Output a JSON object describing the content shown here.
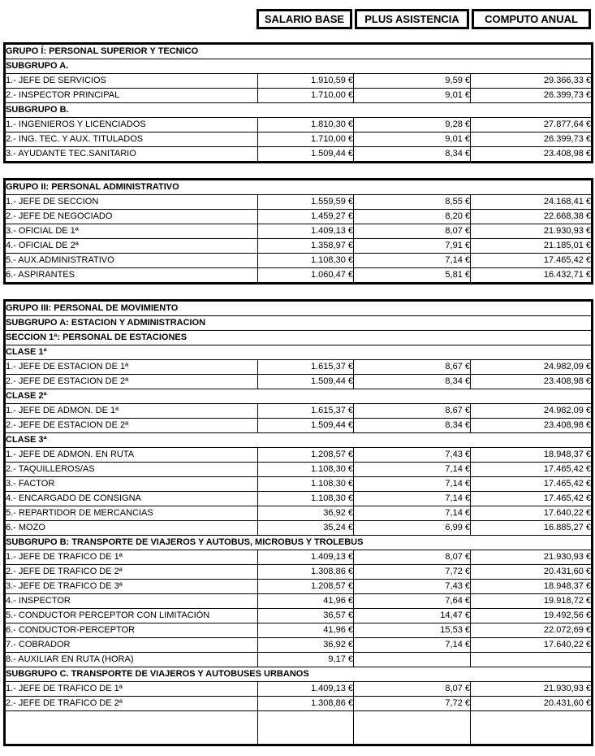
{
  "header_band": {
    "columns": [
      "SALARIO BASE",
      "PLUS ASISTENCIA",
      "COMPUTO ANUAL"
    ]
  },
  "colors": {
    "background": "#ffffff",
    "border": "#000000",
    "text": "#000000"
  },
  "tables": [
    {
      "name": "grupo-i",
      "rows": [
        {
          "type": "section",
          "label": "GRUPO Í: PERSONAL SUPERIOR Y TECNICO"
        },
        {
          "type": "section",
          "label": "SUBGRUPO A."
        },
        {
          "type": "data",
          "label": "1.- JEFE DE SERVICIOS",
          "values": [
            "1.910,59 €",
            "9,59 €",
            "29.366,33 €"
          ]
        },
        {
          "type": "data",
          "label": "2.- INSPECTOR PRINCIPAL",
          "values": [
            "1.710,00 €",
            "9,01 €",
            "26.399,73 €"
          ]
        },
        {
          "type": "section",
          "label": "SUBGRUPO B."
        },
        {
          "type": "data",
          "label": "1.- INGENIEROS Y LICENCIADOS",
          "values": [
            "1.810,30 €",
            "9,28 €",
            "27.877,64 €"
          ]
        },
        {
          "type": "data",
          "label": "2.- ING. TEC. Y AUX. TITULADOS",
          "values": [
            "1.710,00 €",
            "9,01 €",
            "26.399,73 €"
          ]
        },
        {
          "type": "data",
          "label": "3.- AYUDANTE TEC.SANITARIO",
          "values": [
            "1.509,44 €",
            "8,34 €",
            "23.408,98 €"
          ]
        }
      ]
    },
    {
      "name": "grupo-ii",
      "rows": [
        {
          "type": "section",
          "label": "GRUPO II: PERSONAL ADMINISTRATIVO"
        },
        {
          "type": "data",
          "label": "1.- JEFE DE SECCION",
          "values": [
            "1.559,59 €",
            "8,55 €",
            "24.168,41 €"
          ]
        },
        {
          "type": "data",
          "label": "2.- JEFE DE NEGOCIADO",
          "values": [
            "1.459,27 €",
            "8,20 €",
            "22.668,38 €"
          ]
        },
        {
          "type": "data",
          "label": "3.- OFICIAL DE 1ª",
          "values": [
            "1.409,13 €",
            "8,07 €",
            "21.930,93 €"
          ]
        },
        {
          "type": "data",
          "label": "4.- OFICIAL DE 2ª",
          "values": [
            "1.358,97 €",
            "7,91 €",
            "21.185,01 €"
          ]
        },
        {
          "type": "data",
          "label": "5.- AUX.ADMINISTRATIVO",
          "values": [
            "1.108,30 €",
            "7,14 €",
            "17.465,42 €"
          ]
        },
        {
          "type": "data",
          "label": "6.- ASPIRANTES",
          "values": [
            "1.060,47 €",
            "5,81 €",
            "16.432,71 €"
          ]
        }
      ]
    },
    {
      "name": "grupo-iii",
      "rows": [
        {
          "type": "section",
          "label": "GRUPO III: PERSONAL DE MOVIMIENTO"
        },
        {
          "type": "section",
          "label": "SUBGRUPO A: ESTACION Y ADMINISTRACION"
        },
        {
          "type": "section",
          "label": "SECCION 1ª: PERSONAL DE ESTACIONES"
        },
        {
          "type": "section",
          "label": "CLASE 1ª"
        },
        {
          "type": "data",
          "label": "1.- JEFE DE ESTACION DE 1ª",
          "values": [
            "1.615,37 €",
            "8,67 €",
            "24.982,09 €"
          ]
        },
        {
          "type": "data",
          "label": "2.- JEFE DE ESTACION DE 2ª",
          "values": [
            "1.509,44 €",
            "8,34 €",
            "23.408,98 €"
          ]
        },
        {
          "type": "section",
          "label": "CLASE 2ª"
        },
        {
          "type": "data",
          "label": "1.- JEFE DE ADMON. DE 1ª",
          "values": [
            "1.615,37 €",
            "8,67 €",
            "24.982,09 €"
          ]
        },
        {
          "type": "data",
          "label": "2.- JEFE DE ESTACION DE 2ª",
          "values": [
            "1.509,44 €",
            "8,34 €",
            "23.408,98 €"
          ]
        },
        {
          "type": "section",
          "label": "CLASE 3ª"
        },
        {
          "type": "data",
          "label": "1.- JEFE DE ADMON. EN RUTA",
          "values": [
            "1.208,57 €",
            "7,43 €",
            "18.948,37 €"
          ]
        },
        {
          "type": "data",
          "label": "2.- TAQUILLEROS/AS",
          "values": [
            "1.108,30 €",
            "7,14 €",
            "17.465,42 €"
          ]
        },
        {
          "type": "data",
          "label": "3.- FACTOR",
          "values": [
            "1.108,30 €",
            "7,14 €",
            "17.465,42 €"
          ]
        },
        {
          "type": "data",
          "label": "4.- ENCARGADO DE CONSIGNA",
          "values": [
            "1.108,30 €",
            "7,14 €",
            "17.465,42 €"
          ]
        },
        {
          "type": "data",
          "label": "5.- REPARTIDOR DE MERCANCIAS",
          "values": [
            "36,92 €",
            "7,14 €",
            "17.640,22 €"
          ]
        },
        {
          "type": "data",
          "label": "6.- MOZO",
          "values": [
            "35,24 €",
            "6,99 €",
            "16.885,27 €"
          ]
        },
        {
          "type": "section",
          "label": "SUBGRUPO B: TRANSPORTE DE VIAJEROS Y AUTOBUS, MICROBUS Y TROLEBUS"
        },
        {
          "type": "data",
          "label": "1.- JEFE DE TRAFICO DE 1ª",
          "values": [
            "1.409,13 €",
            "8,07 €",
            "21.930,93 €"
          ]
        },
        {
          "type": "data",
          "label": "2.- JEFE DE TRAFICO DE 2ª",
          "values": [
            "1.308,86 €",
            "7,72 €",
            "20.431,60 €"
          ]
        },
        {
          "type": "data",
          "label": "3.- JEFE DE TRAFICO DE 3ª",
          "values": [
            "1.208,57 €",
            "7,43 €",
            "18.948,37 €"
          ]
        },
        {
          "type": "data",
          "label": "4.- INSPECTOR",
          "values": [
            "41,96 €",
            "7,64 €",
            "19.918,72 €"
          ]
        },
        {
          "type": "data",
          "label": "5.- CONDUCTOR PERCEPTOR CON LIMITACIÓN",
          "values": [
            "36,57 €",
            "14,47 €",
            "19.492,56 €"
          ]
        },
        {
          "type": "data",
          "label": "6.- CONDUCTOR-PERCEPTOR",
          "values": [
            "41,96 €",
            "15,53 €",
            "22.072,69 €"
          ]
        },
        {
          "type": "data",
          "label": "7.- COBRADOR",
          "values": [
            "36,92 €",
            "7,14 €",
            "17.640,22 €"
          ]
        },
        {
          "type": "data",
          "label": "8.- AUXILIAR EN RUTA (HORA)",
          "values": [
            "9,17 €",
            "",
            ""
          ]
        },
        {
          "type": "section",
          "label": "SUBGRUPO C. TRANSPORTE DE VIAJEROS Y AUTOBUSES URBANOS"
        },
        {
          "type": "data",
          "label": "1.- JEFE DE TRAFICO DE 1ª",
          "values": [
            "1.409,13 €",
            "8,07 €",
            "21.930,93 €"
          ]
        },
        {
          "type": "data",
          "label": "2.- JEFE DE TRAFICO DE 2ª",
          "values": [
            "1.308,86 €",
            "7,72 €",
            "20.431,60 €"
          ]
        },
        {
          "type": "data",
          "label": "",
          "values": [
            "",
            "",
            ""
          ],
          "partial": true
        }
      ]
    }
  ]
}
